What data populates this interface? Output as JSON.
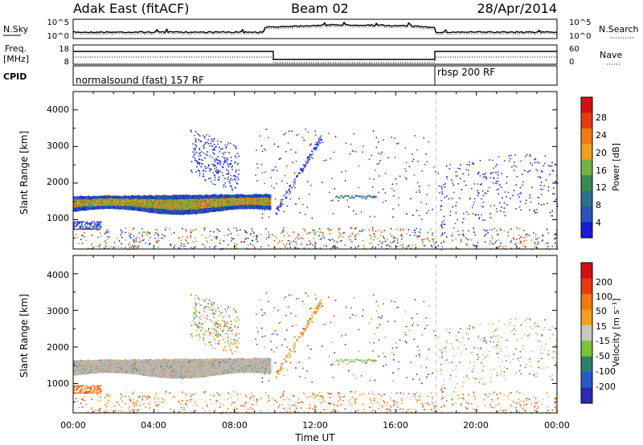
{
  "header": {
    "radar": "Adak East (fitACF)",
    "beam": "Beam 02",
    "date": "28/Apr/2014"
  },
  "noise_panel": {
    "left_label": "N.Sky",
    "right_label": "N.Search",
    "left_ticks": [
      "10^5",
      "10^0"
    ],
    "right_ticks": [
      "10^5",
      "10^0"
    ]
  },
  "freq_panel": {
    "left_label_1": "Freq.",
    "left_label_2": "[MHz]",
    "right_label": "Nave",
    "left_ticks": [
      "18",
      "8"
    ],
    "right_ticks": [
      "60",
      "0"
    ]
  },
  "cpid": {
    "label": "CPID",
    "segments": [
      {
        "text": "normalsound (fast) 157 RF",
        "start_hour": 0,
        "end_hour": 18
      },
      {
        "text": "rbsp 200 RF",
        "start_hour": 18,
        "end_hour": 24
      }
    ]
  },
  "chart_data": [
    {
      "type": "heatmap",
      "name": "power",
      "xlabel": "",
      "ylabel": "Slant Range [km]",
      "xlim": [
        0,
        24
      ],
      "ylim": [
        200,
        4500
      ],
      "yticks": [
        "1000",
        "2000",
        "3000",
        "4000"
      ],
      "colorbar": {
        "label": "Power [dB]",
        "ticks": [
          "4",
          "8",
          "12",
          "16",
          "20",
          "24",
          "28"
        ],
        "range": [
          0,
          32
        ]
      },
      "bands": [
        {
          "x_start": 0,
          "x_end": 9.8,
          "range_low": 1200,
          "range_high": 1800,
          "level": "high"
        },
        {
          "x_start": 0,
          "x_end": 1.4,
          "range_low": 750,
          "range_high": 1000,
          "level": "low"
        },
        {
          "x_start": 5.8,
          "x_end": 7.8,
          "range_low": 2000,
          "range_high": 3500,
          "level": "low"
        },
        {
          "x_start": 13.0,
          "x_end": 15.0,
          "range_low": 1550,
          "range_high": 1700,
          "level": "mid"
        },
        {
          "x_start": 18.0,
          "x_end": 24.0,
          "range_low": 1200,
          "range_high": 2900,
          "level": "low"
        }
      ]
    },
    {
      "type": "heatmap",
      "name": "velocity",
      "xlabel": "Time UT",
      "ylabel": "Slant Range [km]",
      "xlim": [
        0,
        24
      ],
      "ylim": [
        200,
        4500
      ],
      "xticks": [
        "00:00",
        "04:00",
        "08:00",
        "12:00",
        "16:00",
        "20:00",
        "00:00"
      ],
      "yticks": [
        "1000",
        "2000",
        "3000",
        "4000"
      ],
      "colorbar": {
        "label": "Velocity [m s⁻¹]",
        "ticks": [
          "200",
          "100",
          "50",
          "15",
          "-15",
          "-50",
          "-100",
          "-200"
        ]
      }
    }
  ],
  "colors": {
    "power_scale": [
      "#1a1ad6",
      "#2d52b8",
      "#2f6f8a",
      "#3a8a50",
      "#77b045",
      "#f0a020",
      "#f07a10",
      "#e83a10",
      "#d61010"
    ],
    "velocity_scale": [
      "#2a2ab8",
      "#2a58c8",
      "#2e7f6a",
      "#7ac43a",
      "#c8c8c0",
      "#f0a020",
      "#f07a10",
      "#e83a10",
      "#d61010"
    ],
    "ground_scatter": "#b8b8b8"
  }
}
